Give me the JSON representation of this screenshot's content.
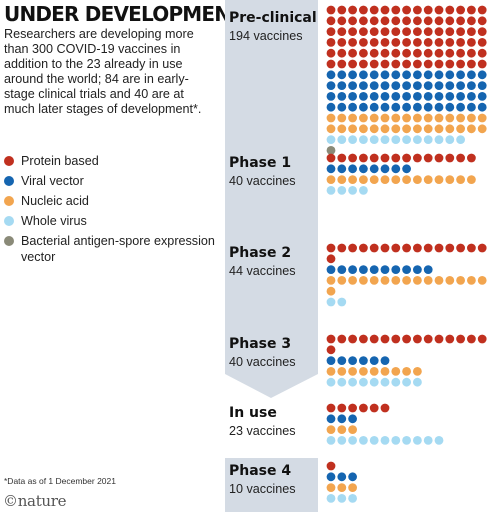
{
  "title": "UNDER DEVELOPMENT",
  "intro": "Researchers are developing more than 300 COVID-19 vaccines in addition to the 23 already in use around the world; 84 are in early-stage clinical trials and 40 are at much later stages of development*.",
  "footnote": "*Data as of 1 December 2021",
  "brand": "©nature",
  "colors": {
    "protein": "#c0301f",
    "viral": "#1565b0",
    "nucleic": "#f2a54f",
    "whole": "#a5daf2",
    "bacterial": "#8a8a78",
    "rail": "#d4dbe4"
  },
  "legend": [
    {
      "key": "protein",
      "label": "Protein based"
    },
    {
      "key": "viral",
      "label": "Viral vector"
    },
    {
      "key": "nucleic",
      "label": "Nucleic acid"
    },
    {
      "key": "whole",
      "label": "Whole virus"
    },
    {
      "key": "bacterial",
      "label": "Bacterial antigen-spore expression vector"
    }
  ],
  "chart_data": {
    "type": "dot-matrix",
    "unit": "1 dot = 1 vaccine",
    "stages": [
      {
        "name": "Pre-clinical",
        "count_label": "194 vaccines",
        "total": 194,
        "breakdown": [
          {
            "type": "protein",
            "count": 90
          },
          {
            "type": "viral",
            "count": 60
          },
          {
            "type": "nucleic",
            "count": 30
          },
          {
            "type": "whole",
            "count": 13
          },
          {
            "type": "bacterial",
            "count": 1
          }
        ]
      },
      {
        "name": "Phase 1",
        "count_label": "40 vaccines",
        "total": 40,
        "breakdown": [
          {
            "type": "protein",
            "count": 14
          },
          {
            "type": "viral",
            "count": 8
          },
          {
            "type": "nucleic",
            "count": 14
          },
          {
            "type": "whole",
            "count": 4
          }
        ]
      },
      {
        "name": "Phase 2",
        "count_label": "44 vaccines",
        "total": 44,
        "breakdown": [
          {
            "type": "protein",
            "count": 16
          },
          {
            "type": "viral",
            "count": 10
          },
          {
            "type": "nucleic",
            "count": 16
          },
          {
            "type": "whole",
            "count": 2
          }
        ]
      },
      {
        "name": "Phase 3",
        "count_label": "40 vaccines",
        "total": 40,
        "breakdown": [
          {
            "type": "protein",
            "count": 16
          },
          {
            "type": "viral",
            "count": 6
          },
          {
            "type": "nucleic",
            "count": 9
          },
          {
            "type": "whole",
            "count": 9
          }
        ]
      },
      {
        "name": "In use",
        "count_label": "23 vaccines",
        "total": 23,
        "breakdown": [
          {
            "type": "protein",
            "count": 6
          },
          {
            "type": "viral",
            "count": 3
          },
          {
            "type": "nucleic",
            "count": 3
          },
          {
            "type": "whole",
            "count": 11
          }
        ]
      },
      {
        "name": "Phase 4",
        "count_label": "10 vaccines",
        "total": 10,
        "breakdown": [
          {
            "type": "protein",
            "count": 1
          },
          {
            "type": "viral",
            "count": 3
          },
          {
            "type": "nucleic",
            "count": 3
          },
          {
            "type": "whole",
            "count": 3
          }
        ]
      }
    ]
  }
}
